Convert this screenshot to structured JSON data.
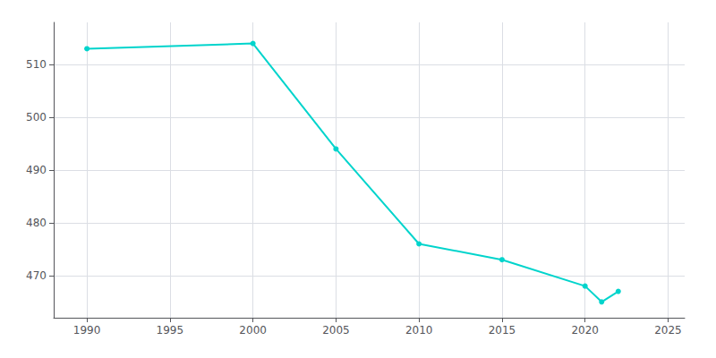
{
  "chart_data": {
    "type": "line",
    "x": [
      1990,
      2000,
      2005,
      2010,
      2015,
      2020,
      2021,
      2022
    ],
    "values": [
      513,
      514,
      494,
      476,
      473,
      468,
      465,
      467
    ],
    "color": "#00d4cc",
    "marker": "circle",
    "xlim": [
      1988,
      2026
    ],
    "ylim": [
      462,
      518
    ],
    "xticks": [
      1990,
      1995,
      2000,
      2005,
      2010,
      2015,
      2020,
      2025
    ],
    "yticks": [
      470,
      480,
      490,
      500,
      510
    ],
    "grid": true
  }
}
